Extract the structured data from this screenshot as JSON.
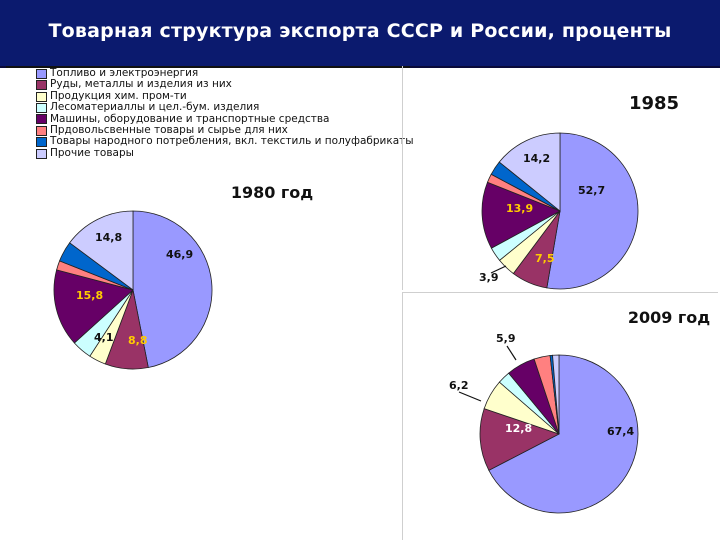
{
  "title": "Товарная структура экспорта СССР и России, проценты",
  "legend": [
    {
      "label": "Топливо и электроэнергия",
      "color": "#9999ff"
    },
    {
      "label": "Руды, металлы и изделия из них",
      "color": "#993366"
    },
    {
      "label": "Продукция хим. пром-ти",
      "color": "#ffffcc"
    },
    {
      "label": "Лесоматериаллы и цел.-бум. изделия",
      "color": "#ccffff"
    },
    {
      "label": "Машины, оборудование и транспортные средства",
      "color": "#660066"
    },
    {
      "label": "Прдовольсвенные товары и сырье для них",
      "color": "#ff8080"
    },
    {
      "label": "Товары народного потребления, вкл. текстиль и полуфабрикаты",
      "color": "#0066cc"
    },
    {
      "label": "Прочие товары",
      "color": "#ccccff"
    }
  ],
  "chart_data": [
    {
      "type": "pie",
      "title": "1980 год",
      "categories": [
        "Топливо и электроэнергия",
        "Руды, металлы и изделия из них",
        "Продукция хим. пром-ти",
        "Лесоматериаллы и цел.-бум. изделия",
        "Машины, оборудование и транспортные средства",
        "Прдовольсвенные товары и сырье для них",
        "Товары народного потребления, вкл. текстиль и полуфабрикаты",
        "Прочие товары"
      ],
      "values": [
        46.9,
        8.8,
        3.5,
        4.1,
        15.8,
        1.9,
        4.2,
        14.8
      ],
      "data_labels": [
        "46,9",
        "8,8",
        "",
        "4,1",
        "15,8",
        "",
        "",
        "14,8"
      ]
    },
    {
      "type": "pie",
      "title": "1985",
      "categories": [
        "Топливо и электроэнергия",
        "Руды, металлы и изделия из них",
        "Продукция хим. пром-ти",
        "Лесоматериаллы и цел.-бум. изделия",
        "Машины, оборудование и транспортные средства",
        "Прдовольсвенные товары и сырье для них",
        "Товары народного потребления, вкл. текстиль и полуфабрикаты",
        "Прочие товары"
      ],
      "values": [
        52.7,
        7.5,
        3.9,
        3.0,
        13.9,
        1.8,
        3.0,
        14.2
      ],
      "data_labels": [
        "52,7",
        "7,5",
        "3,9",
        "",
        "13,9",
        "",
        "",
        "14,2"
      ]
    },
    {
      "type": "pie",
      "title": "2009 год",
      "categories": [
        "Топливо и электроэнергия",
        "Руды, металлы и изделия из них",
        "Продукция хим. пром-ти",
        "Лесоматериаллы и цел.-бум. изделия",
        "Машины, оборудование и транспортные средства",
        "Прдовольсвенные товары и сырье для них",
        "Товары народного потребления, вкл. текстиль и полуфабрикаты",
        "Прочие товары"
      ],
      "values": [
        67.4,
        12.8,
        6.2,
        2.6,
        5.9,
        3.3,
        0.5,
        1.3
      ],
      "data_labels": [
        "67,4",
        "12,8",
        "6,2",
        "",
        "5,9",
        "",
        "",
        ""
      ]
    }
  ]
}
